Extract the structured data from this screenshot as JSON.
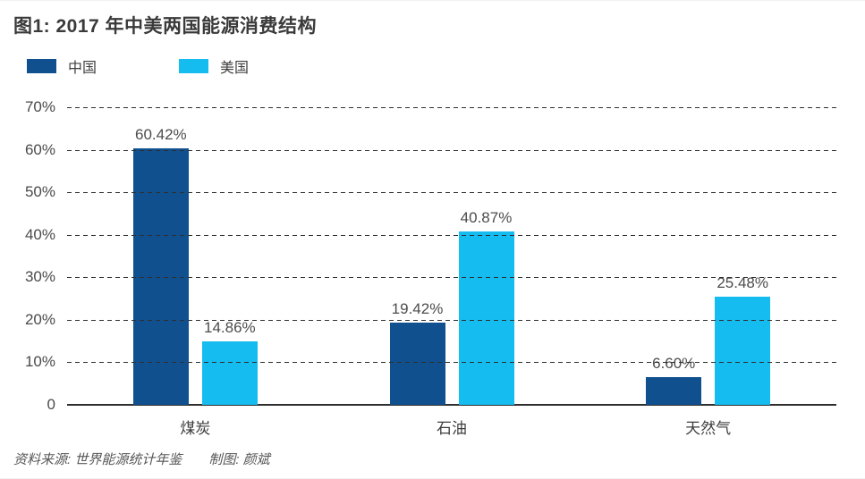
{
  "title": "图1: 2017 年中美两国能源消费结构",
  "legend": {
    "items": [
      {
        "label": "中国",
        "color": "#10508F"
      },
      {
        "label": "美国",
        "color": "#14BCF0"
      }
    ]
  },
  "footer": {
    "source_label": "资料来源: 世界能源统计年鉴",
    "credit_label": "制图: 颜斌"
  },
  "colors": {
    "china_series": "#10508F",
    "usa_series": "#14BCF0",
    "grid": "#2f2f2f",
    "title_text": "#3a3a3a"
  },
  "chart_data": {
    "type": "bar",
    "title": "图1: 2017 年中美两国能源消费结构",
    "categories": [
      "煤炭",
      "石油",
      "天然气"
    ],
    "series": [
      {
        "name": "中国",
        "color": "#10508F",
        "values": [
          60.42,
          19.42,
          6.6
        ],
        "labels": [
          "60.42%",
          "19.42%",
          "6.60%"
        ]
      },
      {
        "name": "美国",
        "color": "#14BCF0",
        "values": [
          14.86,
          40.87,
          25.48
        ],
        "labels": [
          "14.86%",
          "40.87%",
          "25.48%"
        ]
      }
    ],
    "xlabel": "",
    "ylabel": "",
    "ylim": [
      0,
      70
    ],
    "ytick_values": [
      70,
      60,
      50,
      40,
      30,
      20,
      10,
      0
    ],
    "ytick_labels": [
      "70%",
      "60%",
      "50%",
      "40%",
      "30%",
      "20%",
      "10%",
      "0"
    ],
    "grid": "horizontal-dashed",
    "legend_position": "top-left"
  }
}
